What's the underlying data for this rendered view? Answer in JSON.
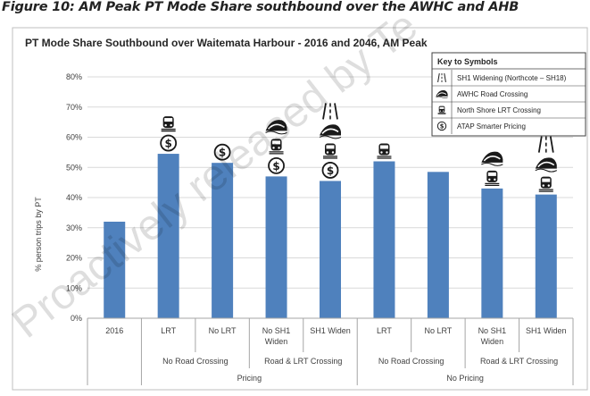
{
  "figure_caption": "Figure 10: AM Peak PT Mode Share southbound over the AWHC and AHB",
  "watermark_text": "Proactively released by Te",
  "colors": {
    "bar": "#4f81bd",
    "axis": "#a6a6a6",
    "grid": "#d9d9d9",
    "icon_dark": "#1a1a1a"
  },
  "chart_data": {
    "type": "bar",
    "title": "PT Mode Share Southbound over Waitemata Harbour - 2016 and 2046, AM Peak",
    "ylabel": "% person trips by PT",
    "xlabel": "",
    "ylim": [
      0,
      80
    ],
    "yticks": [
      "0%",
      "10%",
      "20%",
      "30%",
      "40%",
      "50%",
      "60%",
      "70%",
      "80%"
    ],
    "grid": true,
    "categories": [
      "2016",
      "LRT",
      "No LRT",
      "No SH1 Widen",
      "SH1 Widen",
      "LRT",
      "No LRT",
      "No SH1 Widen",
      "SH1 Widen"
    ],
    "category_lines": [
      [
        "2016"
      ],
      [
        "LRT"
      ],
      [
        "No LRT"
      ],
      [
        "No SH1",
        "Widen"
      ],
      [
        "SH1 Widen"
      ],
      [
        "LRT"
      ],
      [
        "No LRT"
      ],
      [
        "No SH1",
        "Widen"
      ],
      [
        "SH1 Widen"
      ]
    ],
    "values": [
      32,
      54.5,
      51.5,
      47,
      45.5,
      52,
      48.5,
      43,
      41
    ],
    "group_labels_level2": [
      {
        "label": "No Road Crossing",
        "start": 1,
        "end": 2
      },
      {
        "label": "Road & LRT Crossing",
        "start": 3,
        "end": 4
      },
      {
        "label": "No Road Crossing",
        "start": 5,
        "end": 6
      },
      {
        "label": "Road & LRT Crossing",
        "start": 7,
        "end": 8
      }
    ],
    "group_labels_level3": [
      {
        "label": "Pricing",
        "start": 1,
        "end": 4
      },
      {
        "label": "No Pricing",
        "start": 5,
        "end": 8
      }
    ],
    "bar_icons": [
      [],
      [
        "lrt",
        "pricing"
      ],
      [
        "pricing"
      ],
      [
        "awhc",
        "lrt",
        "pricing"
      ],
      [
        "sh1",
        "awhc",
        "lrt",
        "pricing"
      ],
      [
        "lrt"
      ],
      [],
      [
        "awhc",
        "lrt"
      ],
      [
        "sh1",
        "awhc",
        "lrt"
      ]
    ],
    "legend": {
      "title": "Key to Symbols",
      "placement": "top-right",
      "items": [
        {
          "icon": "sh1",
          "label": "SH1 Widening (Northcote – SH18)"
        },
        {
          "icon": "awhc",
          "label": "AWHC Road Crossing"
        },
        {
          "icon": "lrt",
          "label": "North Shore LRT Crossing"
        },
        {
          "icon": "pricing",
          "label": "ATAP Smarter Pricing"
        }
      ]
    }
  }
}
